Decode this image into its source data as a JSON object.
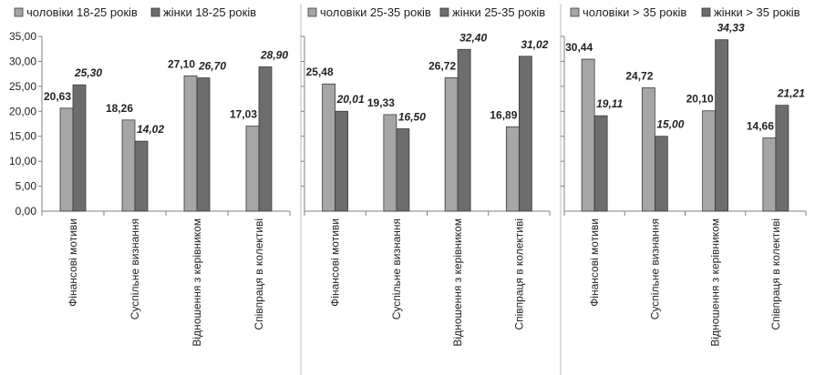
{
  "colors": {
    "men": "#a6a6a6",
    "women": "#6d6d6d",
    "border": "#3a3a3a",
    "axis": "#808080"
  },
  "chart_data": [
    {
      "type": "bar",
      "categories": [
        "Фінансові мотиви",
        "Суспільне визнання",
        "Відношення з керівником",
        "Співпраця в колективі"
      ],
      "series": [
        {
          "name": "чоловіки 18-25 років",
          "values": [
            20.63,
            18.26,
            27.1,
            17.03
          ],
          "labels": [
            "20,63",
            "18,26",
            "27,10",
            "17,03"
          ]
        },
        {
          "name": "жінки 18-25 років",
          "values": [
            25.3,
            14.02,
            26.7,
            28.9
          ],
          "labels": [
            "25,30",
            "14,02",
            "26,70",
            "28,90"
          ]
        }
      ],
      "ylim": [
        0,
        35
      ],
      "yticks": [
        "0,00",
        "5,00",
        "10,00",
        "15,00",
        "20,00",
        "25,00",
        "30,00",
        "35,00"
      ],
      "grid": false,
      "legend": "top"
    },
    {
      "type": "bar",
      "categories": [
        "Фінансові мотиви",
        "Суспільне визнання",
        "Відношення з керівником",
        "Співпраця в колективі"
      ],
      "series": [
        {
          "name": "чоловіки 25-35 років",
          "values": [
            25.48,
            19.33,
            26.72,
            16.89
          ],
          "labels": [
            "25,48",
            "19,33",
            "26,72",
            "16,89"
          ]
        },
        {
          "name": "жінки 25-35 років",
          "values": [
            20.01,
            16.5,
            32.4,
            31.02
          ],
          "labels": [
            "20,01",
            "16,50",
            "32,40",
            "31,02"
          ]
        }
      ],
      "ylim": [
        0,
        35
      ],
      "grid": false,
      "legend": "top"
    },
    {
      "type": "bar",
      "categories": [
        "Фінансові мотиви",
        "Суспільне визнання",
        "Відношення з керівником",
        "Співпраця в колективі"
      ],
      "series": [
        {
          "name": "чоловіки > 35 років",
          "values": [
            30.44,
            24.72,
            20.1,
            14.66
          ],
          "labels": [
            "30,44",
            "24,72",
            "20,10",
            "14,66"
          ]
        },
        {
          "name": "жінки > 35 років",
          "values": [
            19.11,
            15.0,
            34.33,
            21.21
          ],
          "labels": [
            "19,11",
            "15,00",
            "34,33",
            "21,21"
          ]
        }
      ],
      "ylim": [
        0,
        35
      ],
      "grid": false,
      "legend": "top"
    }
  ]
}
